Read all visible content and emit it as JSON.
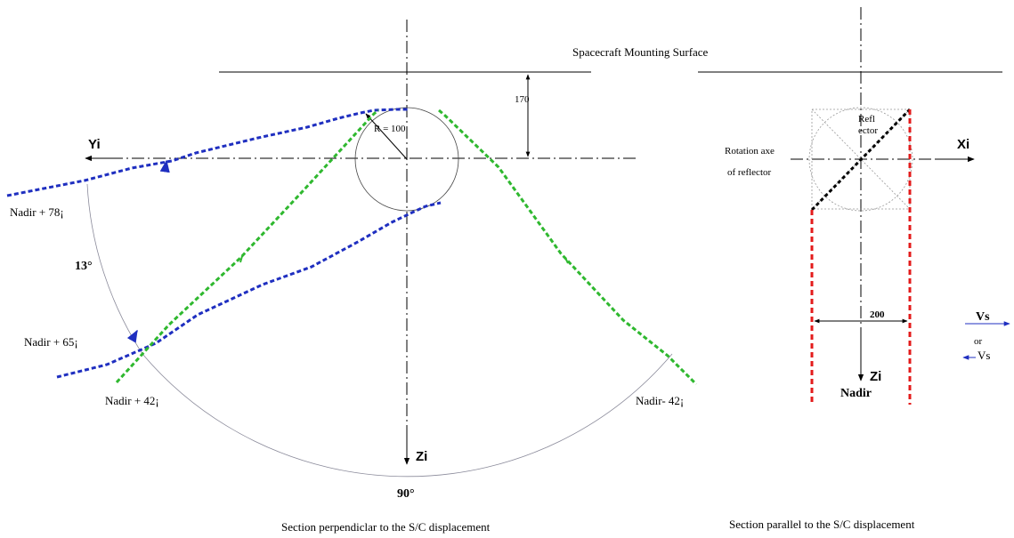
{
  "title": "Spacecraft Mounting Surface",
  "left": {
    "axis_y": "Yi",
    "axis_z": "Zi",
    "radius_label": "R = 100",
    "dimension_label": "170",
    "angle_13": "13°",
    "angle_90": "90°",
    "nadir_78": "Nadir + 78¡",
    "nadir_65": "Nadir + 65¡",
    "nadir_42_left": "Nadir + 42¡",
    "nadir_42_right": "Nadir- 42¡",
    "caption": "Section perpendiclar to the S/C displacement"
  },
  "right": {
    "axis_x": "Xi",
    "axis_z": "Zi",
    "nadir": "Nadir",
    "reflector_1": "Refl",
    "reflector_2": "ector",
    "rotation_1": "Rotation axe",
    "rotation_2": "of reflector",
    "width_label": "200",
    "vs_1": "Vs",
    "or": "or",
    "vs_2": "Vs",
    "caption": "Section parallel to the S/C displacement"
  },
  "colors": {
    "blue_beam": "#1f2fc0",
    "green_beam": "#2fb82f",
    "red_beam": "#e31b1b",
    "reflector": "#000000"
  }
}
